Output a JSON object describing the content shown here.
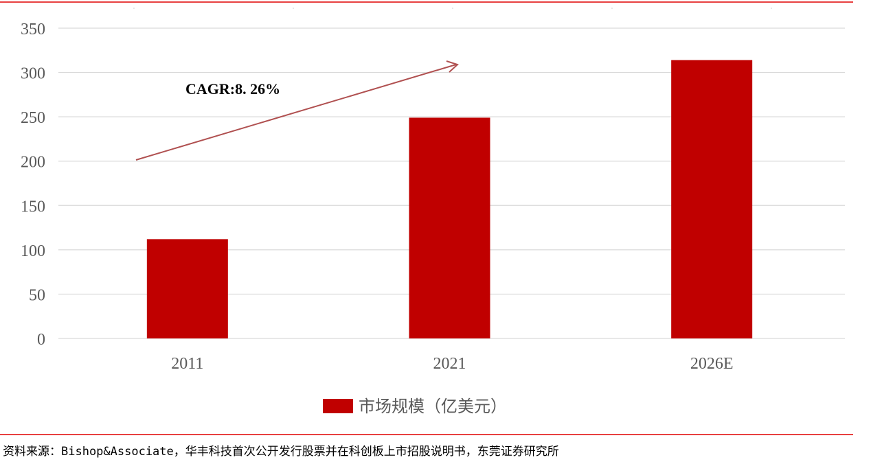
{
  "chart_data": {
    "type": "bar",
    "categories": [
      "2011",
      "2021",
      "2026E"
    ],
    "series": [
      {
        "name": "市场规模（亿美元）",
        "values": [
          112,
          249,
          314
        ],
        "color": "#C00000"
      }
    ],
    "yticks": [
      0,
      50,
      100,
      150,
      200,
      250,
      300,
      350
    ],
    "ylim": [
      0,
      350
    ],
    "grid": true,
    "legend_position": "bottom",
    "annotation": {
      "text": "CAGR:8. 26%",
      "type": "arrow",
      "color": "#B05050"
    }
  },
  "source": "资料来源：Bishop&Associate，华丰科技首次公开发行股票并在科创板上市招股说明书，东莞证券研究所",
  "accent_color": "#E00000"
}
